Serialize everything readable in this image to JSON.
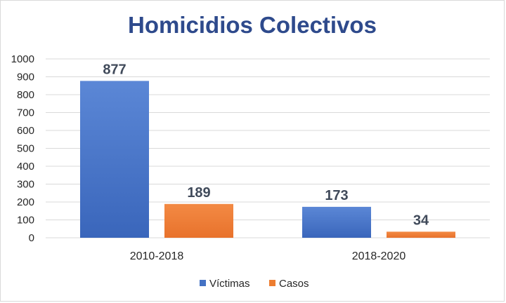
{
  "chart_data": {
    "type": "bar",
    "title": "Homicidios Colectivos",
    "categories": [
      "2010-2018",
      "2018-2020"
    ],
    "series": [
      {
        "name": "Víctimas",
        "values": [
          877,
          173
        ],
        "color": "#4472c4"
      },
      {
        "name": "Casos",
        "values": [
          189,
          34
        ],
        "color": "#ed7d31"
      }
    ],
    "data_labels": [
      [
        "877",
        "173"
      ],
      [
        "189",
        "34"
      ]
    ],
    "ylim": [
      0,
      1000
    ],
    "y_ticks": [
      0,
      100,
      200,
      300,
      400,
      500,
      600,
      700,
      800,
      900,
      1000
    ],
    "grid": true,
    "legend_position": "bottom"
  }
}
